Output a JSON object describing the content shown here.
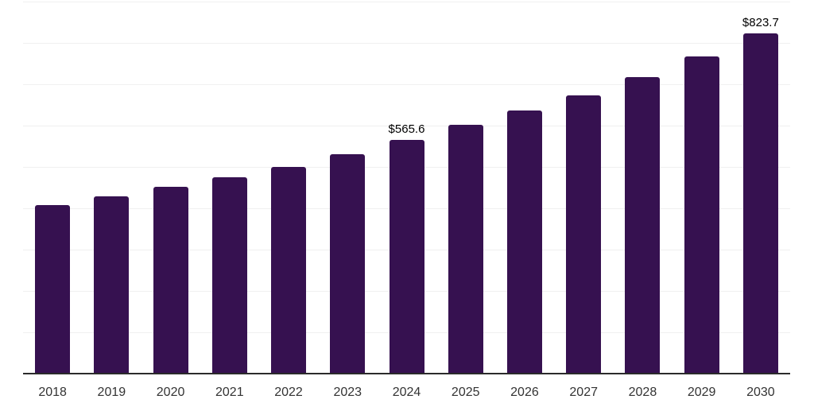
{
  "chart_data": {
    "type": "bar",
    "title": "",
    "xlabel": "",
    "ylabel": "",
    "categories": [
      "2018",
      "2019",
      "2020",
      "2021",
      "2022",
      "2023",
      "2024",
      "2025",
      "2026",
      "2027",
      "2028",
      "2029",
      "2030"
    ],
    "values": [
      407,
      428,
      451,
      475,
      500,
      531,
      565.6,
      602,
      637,
      674,
      717,
      768,
      823.7
    ],
    "data_labels": [
      {
        "category": "2024",
        "text": "$565.6"
      },
      {
        "category": "2030",
        "text": "$823.7"
      }
    ],
    "ylim": [
      0,
      900
    ],
    "grid_step": 100,
    "grid": "horizontal-only",
    "legend": "none",
    "y_axis_tick_labels": "none"
  },
  "colors": {
    "bar": "#361150",
    "grid": "#f0f0f0",
    "axis": "#2b2b2b",
    "tick_label": "#333333",
    "data_label": "#000000",
    "background": "#ffffff"
  }
}
